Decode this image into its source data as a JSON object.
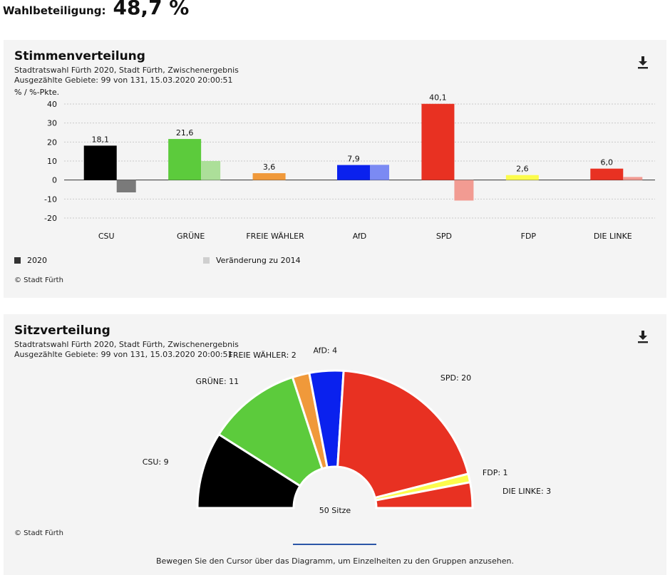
{
  "header": {
    "turnout_label": "Wahlbeteiligung:",
    "turnout_value": "48,7 %"
  },
  "votes": {
    "title": "Stimmenverteilung",
    "subtitle1": "Stadtratswahl Fürth 2020, Stadt Fürth, Zwischenergebnis",
    "subtitle2": "Ausgezählte Gebiete: 99 von 131, 15.03.2020 20:00:51",
    "credit": "© Stadt Fürth",
    "legend_2020": "2020",
    "legend_change": "Veränderung zu 2014"
  },
  "seats": {
    "title": "Sitzverteilung",
    "subtitle1": "Stadtratswahl Fürth 2020, Stadt Fürth, Zwischenergebnis",
    "subtitle2": "Ausgezählte Gebiete: 99 von 131, 15.03.2020 20:00:51",
    "credit": "© Stadt Fürth",
    "center_label": "50 Sitze",
    "hint": "Bewegen Sie den Cursor über das Diagramm, um Einzelheiten zu den Gruppen anzusehen."
  },
  "chart_data": [
    {
      "type": "bar",
      "title": "Stimmenverteilung",
      "ylabel": "% / %-Pkte.",
      "ylim": [
        -20,
        40
      ],
      "yticks": [
        40,
        30,
        20,
        10,
        0,
        -10,
        -20
      ],
      "grid": true,
      "legend_position": "bottom-left",
      "categories": [
        "CSU",
        "GRÜNE",
        "FREIE WÄHLER",
        "AfD",
        "SPD",
        "FDP",
        "DIE LINKE"
      ],
      "colors": [
        "#000000",
        "#5ccb3c",
        "#f0993a",
        "#0a21ee",
        "#e83122",
        "#fcfc4c",
        "#e83122"
      ],
      "change_colors": [
        "#7a7a7a",
        "#acdf99",
        null,
        "#7b8af3",
        "#f29b92",
        null,
        "#f29b92"
      ],
      "series": [
        {
          "name": "2020",
          "values": [
            18.1,
            21.6,
            3.6,
            7.9,
            40.1,
            2.6,
            6.0
          ],
          "labels": [
            "18,1",
            "21,6",
            "3,6",
            "7,9",
            "40,1",
            "2,6",
            "6,0"
          ]
        },
        {
          "name": "Veränderung zu 2014",
          "values": [
            -6.5,
            10.0,
            null,
            8.0,
            -10.8,
            null,
            1.6
          ]
        }
      ]
    },
    {
      "type": "pie",
      "subtype": "half-donut",
      "title": "Sitzverteilung",
      "total": 50,
      "categories": [
        "CSU",
        "GRÜNE",
        "FREIE WÄHLER",
        "AfD",
        "SPD",
        "FDP",
        "DIE LINKE"
      ],
      "values": [
        9,
        11,
        2,
        4,
        20,
        1,
        3
      ],
      "labels": [
        "CSU: 9",
        "GRÜNE: 11",
        "FREIE WÄHLER: 2",
        "AfD: 4",
        "SPD: 20",
        "FDP: 1",
        "DIE LINKE: 3"
      ],
      "colors": [
        "#000000",
        "#5ccb3c",
        "#f0993a",
        "#0a21ee",
        "#e83122",
        "#fcfc4c",
        "#e83122"
      ]
    }
  ]
}
